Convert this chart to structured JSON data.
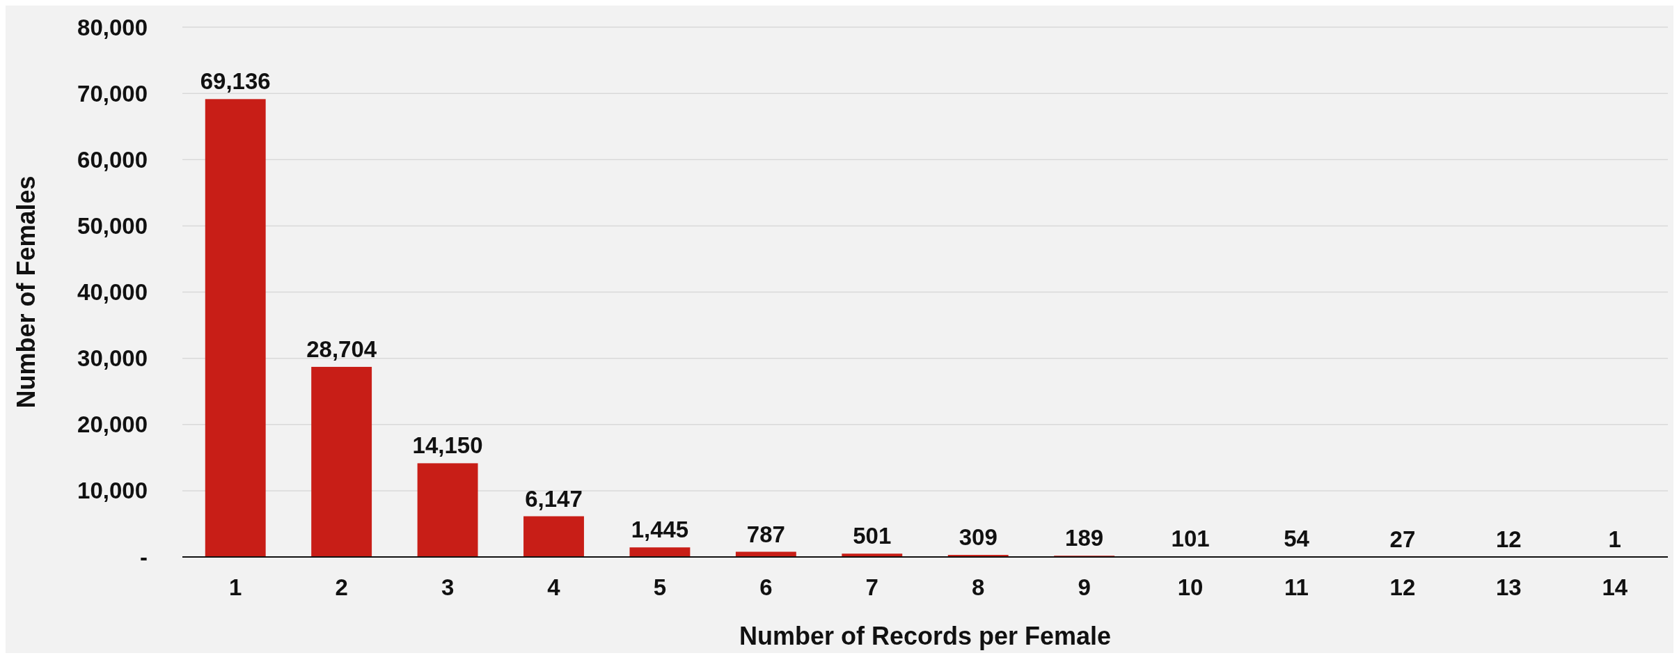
{
  "chart_data": {
    "type": "bar",
    "xlabel": "Number of Records per Female",
    "ylabel": "Number of Females",
    "categories": [
      "1",
      "2",
      "3",
      "4",
      "5",
      "6",
      "7",
      "8",
      "9",
      "10",
      "11",
      "12",
      "13",
      "14"
    ],
    "values": [
      69136,
      28704,
      14150,
      6147,
      1445,
      787,
      501,
      309,
      189,
      101,
      54,
      27,
      12,
      1
    ],
    "value_labels": [
      "69,136",
      "28,704",
      "14,150",
      "6,147",
      "1,445",
      "787",
      "501",
      "309",
      "189",
      "101",
      "54",
      "27",
      "12",
      "1"
    ],
    "color": "#c81e17",
    "ylim": [
      0,
      80000
    ],
    "yticks": [
      {
        "value": 0,
        "label": "-"
      },
      {
        "value": 10000,
        "label": "10,000"
      },
      {
        "value": 20000,
        "label": "20,000"
      },
      {
        "value": 30000,
        "label": "30,000"
      },
      {
        "value": 40000,
        "label": "40,000"
      },
      {
        "value": 50000,
        "label": "50,000"
      },
      {
        "value": 60000,
        "label": "60,000"
      },
      {
        "value": 70000,
        "label": "70,000"
      },
      {
        "value": 80000,
        "label": "80,000"
      }
    ],
    "grid": "y"
  }
}
